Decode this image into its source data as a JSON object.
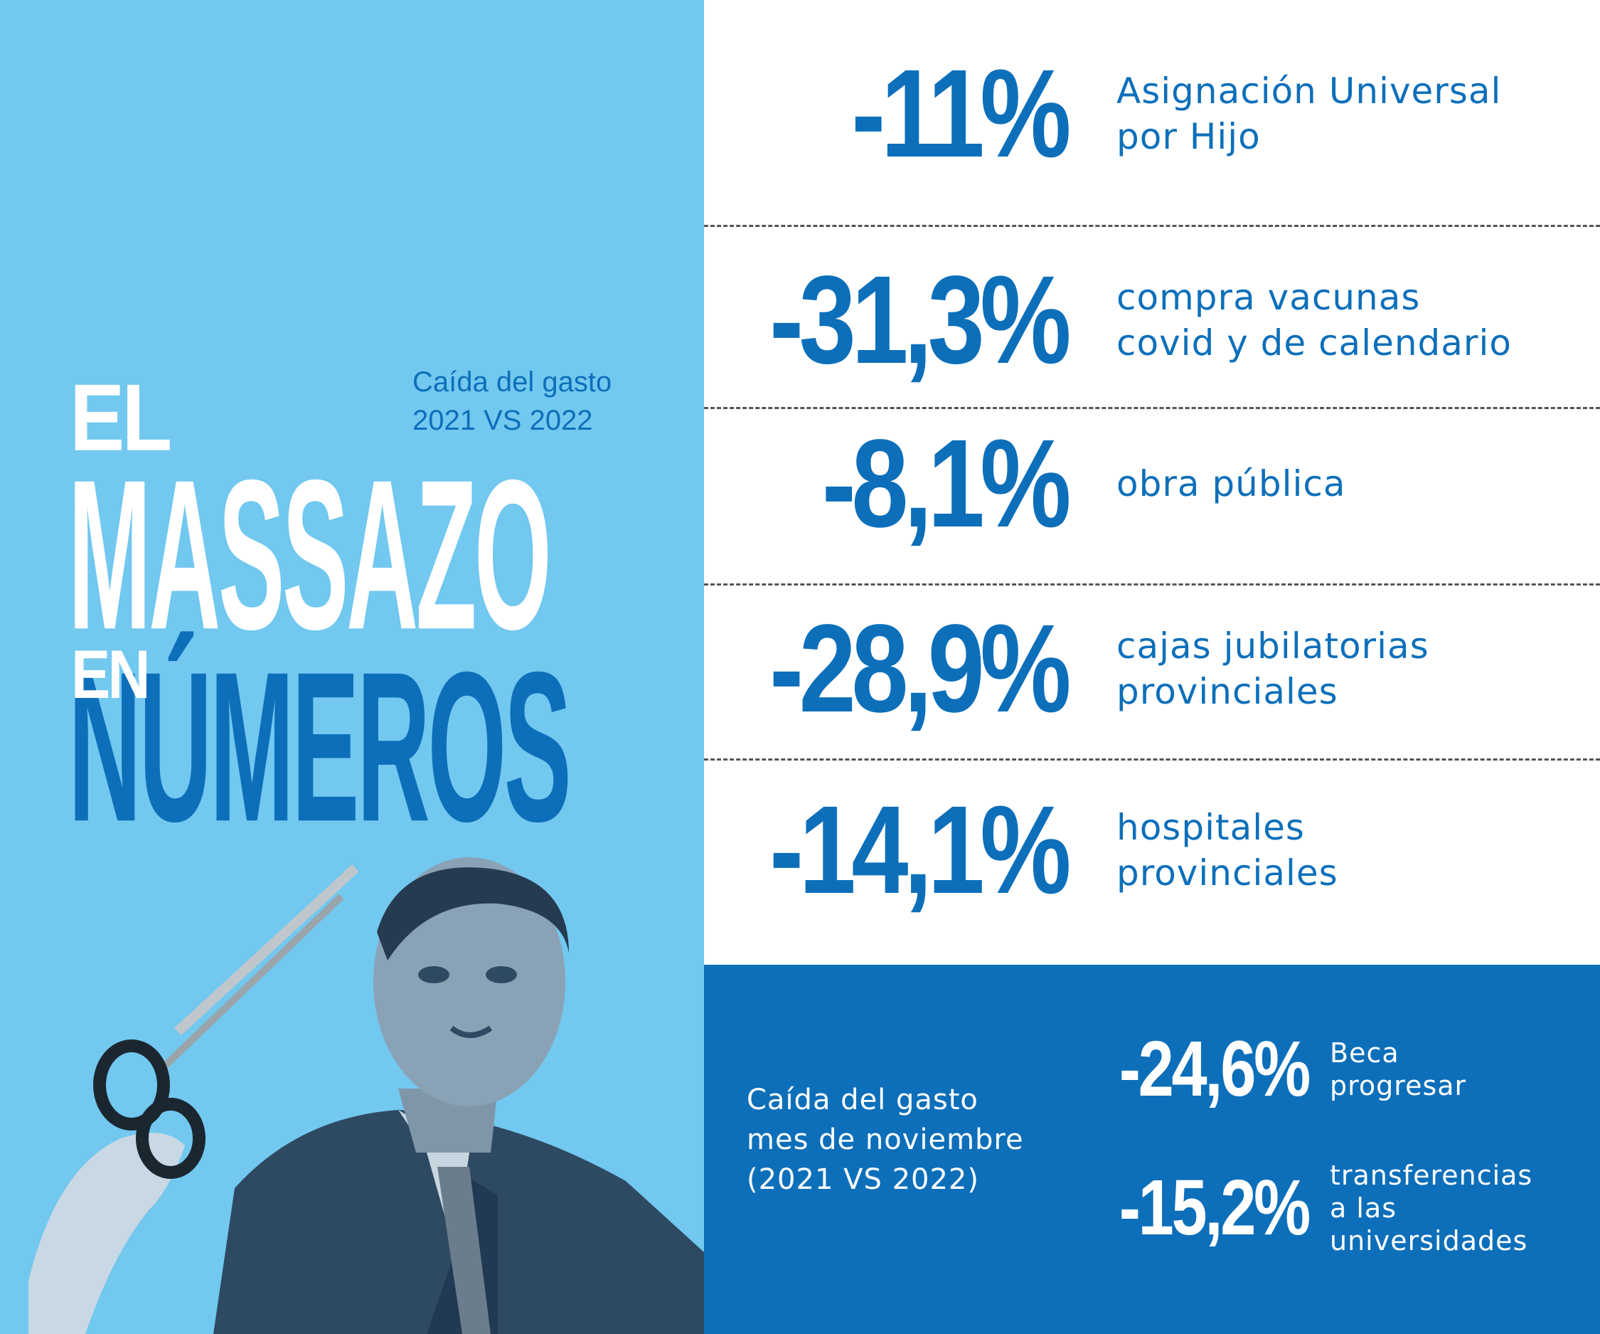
{
  "colors": {
    "light_blue": "#72c8ef",
    "dark_blue": "#0d6fba",
    "white": "#ffffff"
  },
  "headline": {
    "line1": "EL",
    "line2": "MASSAZO",
    "line3_small": "EN",
    "line3_big": "NÚMEROS"
  },
  "subtitle": [
    "Caída del gasto",
    "2021 VS 2022"
  ],
  "items": [
    {
      "value": "-11%",
      "label": [
        "Asignación Universal",
        "por Hijo"
      ]
    },
    {
      "value": "-31,3%",
      "label": [
        "compra vacunas",
        "covid y de calendario"
      ]
    },
    {
      "value": "-8,1%",
      "label": [
        "obra pública"
      ]
    },
    {
      "value": "-28,9%",
      "label": [
        "cajas jubilatorias",
        "provinciales"
      ]
    },
    {
      "value": "-14,1%",
      "label": [
        "hospitales",
        "provinciales"
      ]
    }
  ],
  "november": {
    "title": [
      "Caída del gasto",
      "mes de noviembre",
      "(2021 VS 2022)"
    ],
    "items": [
      {
        "value": "-24,6%",
        "label": [
          "Beca",
          "progresar"
        ]
      },
      {
        "value": "-15,2%",
        "label": [
          "transferencias",
          "a las",
          "universidades"
        ]
      }
    ]
  },
  "photo": {
    "icon": "scissors-icon",
    "subject": "person-in-suit-illustration"
  }
}
